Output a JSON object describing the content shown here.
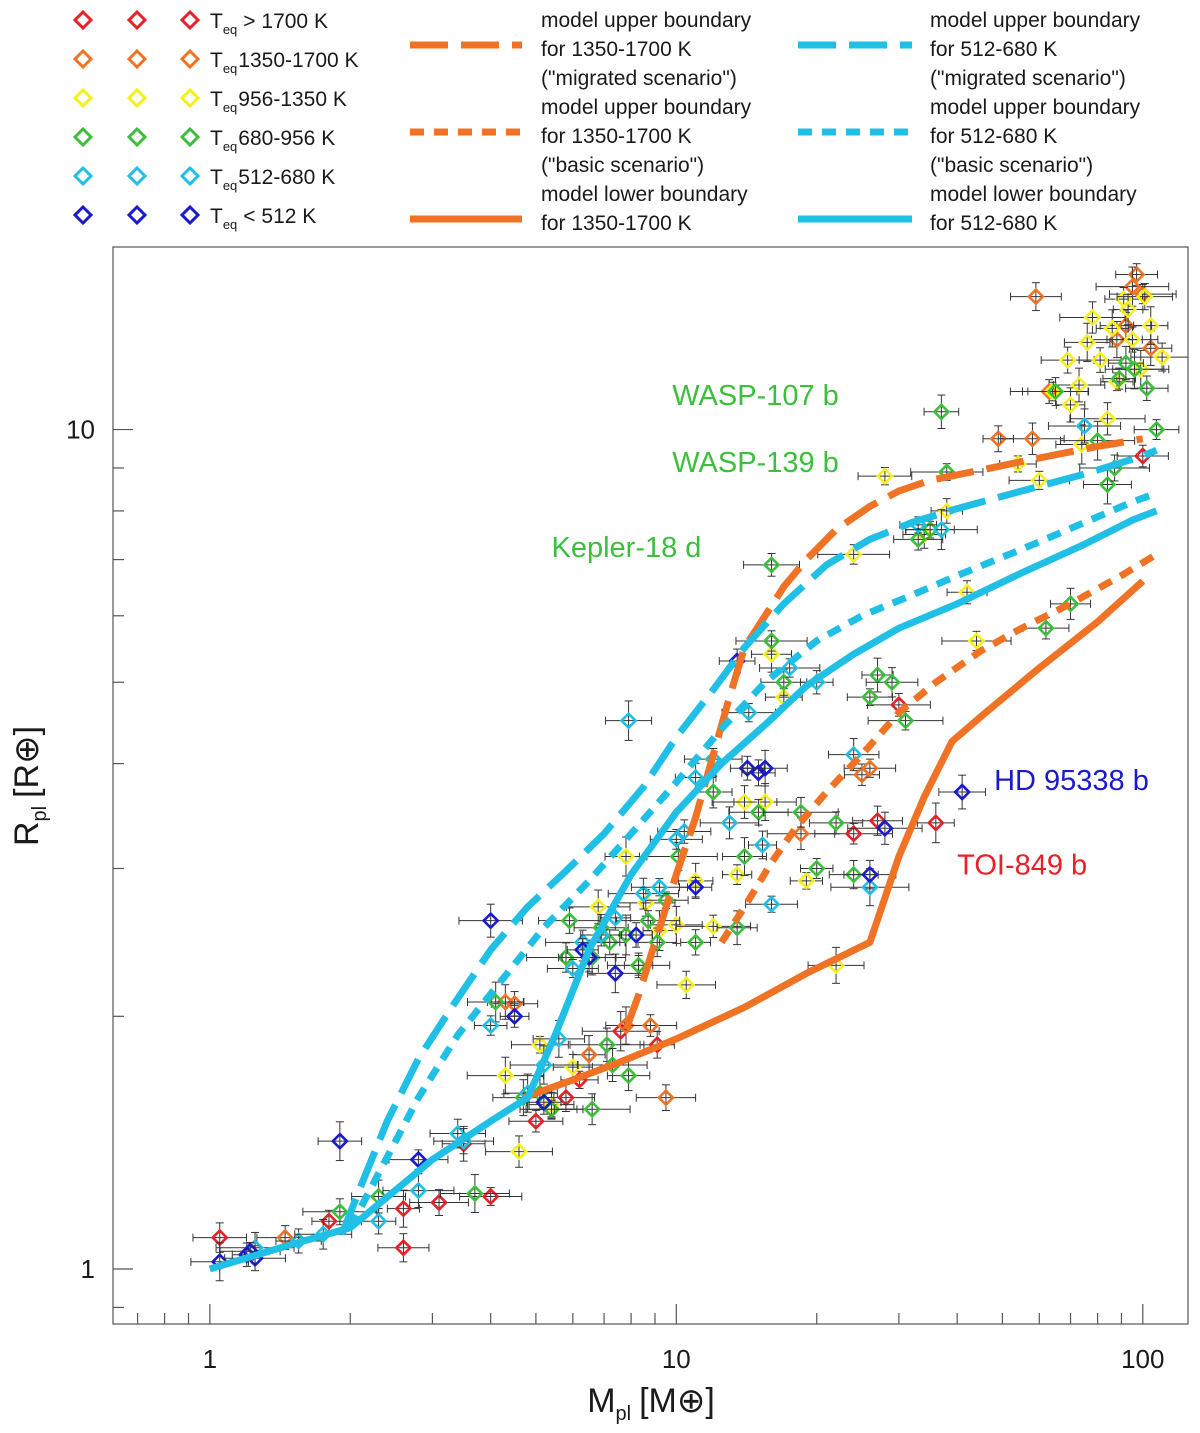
{
  "chart_data": {
    "type": "scatter",
    "title": "",
    "xlabel": {
      "main": "M",
      "sub": "pl",
      "unit": "[M⊕]"
    },
    "ylabel": {
      "main": "R",
      "sub": "pl",
      "unit": "[R⊕]"
    },
    "xscale": "log",
    "yscale": "log",
    "xlim": [
      0.62,
      125
    ],
    "ylim": [
      0.86,
      16.5
    ],
    "x_ticks": [
      {
        "value": 1,
        "label": "1"
      },
      {
        "value": 10,
        "label": "10"
      },
      {
        "value": 100,
        "label": "100"
      }
    ],
    "y_ticks": [
      {
        "value": 1,
        "label": "1"
      },
      {
        "value": 10,
        "label": "10"
      }
    ],
    "grid": false,
    "legend_placement": "top",
    "legend": {
      "temperature_classes": [
        {
          "prefix": "T",
          "sub": "eq",
          "rest": "> 1700 K",
          "color": "#e8202a"
        },
        {
          "prefix": "T",
          "sub": "eq",
          "rest": "1350-1700 K",
          "color": "#f07224"
        },
        {
          "prefix": "T",
          "sub": "eq",
          "rest": "956-1350 K",
          "color": "#f5f01c"
        },
        {
          "prefix": "T",
          "sub": "eq",
          "rest": "680-956 K",
          "color": "#3cbf3c"
        },
        {
          "prefix": "T",
          "sub": "eq",
          "rest": "512-680 K",
          "color": "#1fbfe6"
        },
        {
          "prefix": "T",
          "sub": "eq",
          "rest": "< 512 K",
          "color": "#1a1acc"
        }
      ],
      "model_lines": [
        {
          "line1": "model upper boundary",
          "line2": "for 1350-1700 K",
          "line3": "(\"migrated scenario\")",
          "color": "#f07224",
          "style": "long-dash"
        },
        {
          "line1": "model upper boundary",
          "line2": "for 1350-1700 K",
          "line3": "(\"basic scenario\")",
          "color": "#f07224",
          "style": "short-dash"
        },
        {
          "line1": "model lower boundary",
          "line2": "for 1350-1700 K",
          "line3": "",
          "color": "#f07224",
          "style": "solid"
        },
        {
          "line1": "model upper boundary",
          "line2": "for 512-680 K",
          "line3": "(\"migrated  scenario\")",
          "color": "#1fbfe6",
          "style": "long-dash"
        },
        {
          "line1": "model upper boundary",
          "line2": "for 512-680 K",
          "line3": "(\"basic scenario\")",
          "color": "#1fbfe6",
          "style": "short-dash"
        },
        {
          "line1": "model lower boundary",
          "line2": "for 512-680 K",
          "line3": "",
          "color": "#1fbfe6",
          "style": "solid"
        }
      ]
    },
    "annotations": [
      {
        "text": "WASP-107 b",
        "x": 9.8,
        "y": 10.7,
        "color": "#3cbf3c",
        "anchor": "start"
      },
      {
        "text": "WASP-139 b",
        "x": 9.8,
        "y": 8.9,
        "color": "#3cbf3c",
        "anchor": "start"
      },
      {
        "text": "Kepler-18 d",
        "x": 5.4,
        "y": 7.05,
        "color": "#3cbf3c",
        "anchor": "start"
      },
      {
        "text": "HD 95338 b",
        "x": 48,
        "y": 3.72,
        "color": "#1a1acc",
        "anchor": "start"
      },
      {
        "text": "TOI-849 b",
        "x": 40,
        "y": 2.95,
        "color": "#e8202a",
        "anchor": "start"
      }
    ],
    "series": [
      {
        "name": "model upper boundary 1350-1700 K (migrated scenario)",
        "color": "#f07224",
        "style": "long-dash",
        "x": [
          7.8,
          8.3,
          9.0,
          10.0,
          11.0,
          12.0,
          13.0,
          14.0,
          15.5,
          17.0,
          19.0,
          22.0,
          26.0,
          30.0,
          35.0,
          45.0,
          60.0,
          80.0,
          100.0
        ],
        "y": [
          1.93,
          2.12,
          2.45,
          2.95,
          3.45,
          4.1,
          4.8,
          5.5,
          6.0,
          6.5,
          7.0,
          7.6,
          8.1,
          8.45,
          8.7,
          8.95,
          9.25,
          9.55,
          9.75
        ]
      },
      {
        "name": "model upper boundary 1350-1700 K (basic scenario)",
        "color": "#f07224",
        "style": "short-dash",
        "x": [
          12.5,
          14.0,
          16.0,
          18.0,
          21.0,
          25.0,
          30.0,
          36.0,
          45.0,
          55.0,
          70.0,
          90.0,
          107.0
        ],
        "y": [
          2.45,
          2.7,
          3.05,
          3.35,
          3.7,
          4.1,
          4.6,
          5.0,
          5.45,
          5.8,
          6.2,
          6.7,
          7.1
        ]
      },
      {
        "name": "model lower boundary 1350-1700 K",
        "color": "#f07224",
        "style": "solid",
        "x": [
          4.7,
          6.0,
          7.5,
          10.0,
          14.0,
          19.0,
          26.0,
          30.0,
          34.0,
          39.0,
          46.0,
          60.0,
          80.0,
          100.0
        ],
        "y": [
          1.6,
          1.68,
          1.76,
          1.88,
          2.05,
          2.25,
          2.45,
          3.1,
          3.65,
          4.25,
          4.6,
          5.2,
          5.9,
          6.6
        ]
      },
      {
        "name": "model upper boundary 512-680 K (migrated scenario)",
        "color": "#1fbfe6",
        "style": "long-dash",
        "x": [
          1.92,
          2.1,
          2.4,
          2.8,
          3.3,
          4.0,
          4.8,
          5.8,
          7.0,
          8.5,
          10.0,
          12.0,
          14.0,
          17.0,
          21.0,
          26.0,
          32.0,
          40.0,
          55.0,
          75.0,
          100.0,
          107.0
        ],
        "y": [
          1.1,
          1.25,
          1.5,
          1.78,
          2.05,
          2.4,
          2.7,
          2.98,
          3.3,
          3.75,
          4.3,
          4.9,
          5.5,
          6.2,
          6.9,
          7.4,
          7.75,
          8.05,
          8.45,
          8.85,
          9.3,
          9.45
        ]
      },
      {
        "name": "model upper boundary 512-680 K (basic scenario)",
        "color": "#1fbfe6",
        "style": "short-dash",
        "x": [
          2.0,
          2.3,
          2.8,
          3.4,
          4.2,
          5.2,
          6.5,
          8.0,
          10.0,
          12.5,
          15.5,
          20.0,
          25.0,
          32.0,
          40.0,
          55.0,
          75.0,
          95.0,
          107.0
        ],
        "y": [
          1.12,
          1.3,
          1.6,
          1.9,
          2.2,
          2.55,
          2.9,
          3.3,
          3.8,
          4.4,
          5.0,
          5.6,
          6.0,
          6.35,
          6.7,
          7.2,
          7.75,
          8.2,
          8.4
        ]
      },
      {
        "name": "model lower boundary 512-680 K",
        "color": "#1fbfe6",
        "style": "solid",
        "x": [
          1.0,
          1.5,
          2.0,
          3.0,
          4.0,
          4.8,
          5.5,
          6.5,
          8.0,
          10.0,
          12.5,
          15.5,
          19.0,
          24.0,
          30.0,
          40.0,
          55.0,
          75.0,
          95.0,
          107.0
        ],
        "y": [
          1.0,
          1.07,
          1.12,
          1.35,
          1.5,
          1.6,
          1.9,
          2.4,
          2.95,
          3.5,
          4.0,
          4.45,
          4.95,
          5.4,
          5.8,
          6.2,
          6.75,
          7.3,
          7.8,
          8.0
        ]
      }
    ],
    "points": {
      "red": [
        [
          1.05,
          1.09
        ],
        [
          1.8,
          1.14
        ],
        [
          2.6,
          1.06
        ],
        [
          2.6,
          1.18
        ],
        [
          3.1,
          1.2
        ],
        [
          3.5,
          1.41
        ],
        [
          4.0,
          1.22
        ],
        [
          5.0,
          1.5
        ],
        [
          5.4,
          1.55
        ],
        [
          5.8,
          1.6
        ],
        [
          6.2,
          1.68
        ],
        [
          7.6,
          1.92
        ],
        [
          9.1,
          1.85
        ],
        [
          24.0,
          3.3
        ],
        [
          27.0,
          3.42
        ],
        [
          30.0,
          4.7
        ],
        [
          36.0,
          3.4
        ],
        [
          100.0,
          9.3
        ]
      ],
      "orange": [
        [
          1.45,
          1.09
        ],
        [
          4.3,
          2.08
        ],
        [
          4.5,
          2.07
        ],
        [
          6.5,
          1.8
        ],
        [
          7.8,
          1.95
        ],
        [
          8.8,
          1.95
        ],
        [
          9.5,
          1.6
        ],
        [
          18.5,
          3.3
        ],
        [
          25.0,
          3.88
        ],
        [
          26.0,
          3.95
        ],
        [
          49.0,
          9.75
        ],
        [
          58.0,
          9.75
        ],
        [
          63.0,
          11.1
        ],
        [
          59.0,
          14.4
        ],
        [
          88.0,
          12.8
        ],
        [
          92.0,
          13.3
        ],
        [
          97.0,
          15.3
        ],
        [
          100.0,
          14.5
        ],
        [
          104.0,
          12.5
        ],
        [
          95.0,
          14.8
        ]
      ],
      "yellow": [
        [
          4.3,
          1.7
        ],
        [
          4.6,
          1.38
        ],
        [
          5.1,
          1.85
        ],
        [
          5.4,
          1.57
        ],
        [
          6.0,
          1.74
        ],
        [
          6.8,
          2.7
        ],
        [
          7.8,
          3.1
        ],
        [
          8.3,
          2.3
        ],
        [
          8.6,
          2.73
        ],
        [
          9.2,
          2.53
        ],
        [
          10.0,
          2.57
        ],
        [
          10.5,
          2.18
        ],
        [
          11.0,
          2.9
        ],
        [
          12.0,
          2.56
        ],
        [
          13.5,
          2.95
        ],
        [
          14.0,
          3.6
        ],
        [
          15.5,
          3.6
        ],
        [
          16.0,
          5.4
        ],
        [
          17.0,
          4.8
        ],
        [
          19.0,
          2.9
        ],
        [
          22.0,
          2.3
        ],
        [
          24.0,
          7.1
        ],
        [
          28.0,
          8.8
        ],
        [
          34.0,
          7.5
        ],
        [
          38.0,
          8.0
        ],
        [
          42.0,
          6.4
        ],
        [
          44.0,
          5.6
        ],
        [
          54.0,
          9.1
        ],
        [
          60.0,
          8.7
        ],
        [
          64.0,
          11.1
        ],
        [
          69.0,
          12.1
        ],
        [
          70.0,
          10.7
        ],
        [
          73.0,
          11.3
        ],
        [
          76.0,
          12.7
        ],
        [
          78.0,
          13.6
        ],
        [
          81.0,
          12.1
        ],
        [
          86.0,
          13.2
        ],
        [
          88.0,
          11.4
        ],
        [
          91.0,
          14.3
        ],
        [
          93.0,
          13.9
        ],
        [
          95.0,
          12.8
        ],
        [
          99.0,
          11.8
        ],
        [
          101.0,
          14.4
        ],
        [
          104.0,
          13.3
        ],
        [
          110.0,
          12.2
        ],
        [
          84.0,
          10.3
        ],
        [
          74.0,
          9.6
        ]
      ],
      "green": [
        [
          1.9,
          1.17
        ],
        [
          2.3,
          1.22
        ],
        [
          3.7,
          1.23
        ],
        [
          4.1,
          2.08
        ],
        [
          4.7,
          1.6
        ],
        [
          5.4,
          1.55
        ],
        [
          5.8,
          2.35
        ],
        [
          5.9,
          2.6
        ],
        [
          6.6,
          2.35
        ],
        [
          6.9,
          2.55
        ],
        [
          7.1,
          1.85
        ],
        [
          7.2,
          2.45
        ],
        [
          7.8,
          2.5
        ],
        [
          8.3,
          2.3
        ],
        [
          8.7,
          2.6
        ],
        [
          9.1,
          2.45
        ],
        [
          9.5,
          2.75
        ],
        [
          10.1,
          3.1
        ],
        [
          11.0,
          2.45
        ],
        [
          12.0,
          3.7
        ],
        [
          13.5,
          2.55
        ],
        [
          14.0,
          3.1
        ],
        [
          15.0,
          3.5
        ],
        [
          16.0,
          5.6
        ],
        [
          17.0,
          5.0
        ],
        [
          18.5,
          3.5
        ],
        [
          20.0,
          3.0
        ],
        [
          22.0,
          3.4
        ],
        [
          24.0,
          2.95
        ],
        [
          26.0,
          4.8
        ],
        [
          27.0,
          5.1
        ],
        [
          29.0,
          5.0
        ],
        [
          31.0,
          4.5
        ],
        [
          33.0,
          7.4
        ],
        [
          35.0,
          7.6
        ],
        [
          37.0,
          10.5
        ],
        [
          38.0,
          8.9
        ],
        [
          16.0,
          6.9
        ],
        [
          62.0,
          5.8
        ],
        [
          65.0,
          11.1
        ],
        [
          70.0,
          6.2
        ],
        [
          80.0,
          9.7
        ],
        [
          84.0,
          8.6
        ],
        [
          87.0,
          9.0
        ],
        [
          89.0,
          11.5
        ],
        [
          92.0,
          12.0
        ],
        [
          96.0,
          11.8
        ],
        [
          102.0,
          11.2
        ],
        [
          107.0,
          10.0
        ],
        [
          6.6,
          1.55
        ],
        [
          7.3,
          1.75
        ],
        [
          7.9,
          1.7
        ],
        [
          5.1,
          1.62
        ]
      ],
      "cyan": [
        [
          1.25,
          1.06
        ],
        [
          1.55,
          1.08
        ],
        [
          1.75,
          1.1
        ],
        [
          2.3,
          1.14
        ],
        [
          2.8,
          1.24
        ],
        [
          3.4,
          1.45
        ],
        [
          3.5,
          1.42
        ],
        [
          4.0,
          1.95
        ],
        [
          4.8,
          1.62
        ],
        [
          5.2,
          1.75
        ],
        [
          5.6,
          1.88
        ],
        [
          6.0,
          2.28
        ],
        [
          6.3,
          2.45
        ],
        [
          6.9,
          2.5
        ],
        [
          7.4,
          2.62
        ],
        [
          7.9,
          4.5
        ],
        [
          8.5,
          2.8
        ],
        [
          9.2,
          2.85
        ],
        [
          10.0,
          3.25
        ],
        [
          10.4,
          3.32
        ],
        [
          11.0,
          3.85
        ],
        [
          12.0,
          4.05
        ],
        [
          13.0,
          3.4
        ],
        [
          14.3,
          4.6
        ],
        [
          15.3,
          3.2
        ],
        [
          16.0,
          2.72
        ],
        [
          17.5,
          5.2
        ],
        [
          20.0,
          5.0
        ],
        [
          24.0,
          4.1
        ],
        [
          26.0,
          2.85
        ],
        [
          33.0,
          7.7
        ],
        [
          37.0,
          7.6
        ],
        [
          75.0,
          10.1
        ]
      ],
      "blue": [
        [
          1.05,
          1.02
        ],
        [
          1.2,
          1.04
        ],
        [
          1.22,
          1.05
        ],
        [
          1.25,
          1.03
        ],
        [
          1.9,
          1.42
        ],
        [
          2.8,
          1.35
        ],
        [
          4.0,
          2.6
        ],
        [
          4.5,
          2.0
        ],
        [
          5.2,
          1.58
        ],
        [
          6.3,
          2.4
        ],
        [
          6.5,
          2.35
        ],
        [
          7.4,
          2.25
        ],
        [
          8.2,
          2.5
        ],
        [
          11.0,
          2.85
        ],
        [
          13.5,
          5.3
        ],
        [
          14.2,
          3.95
        ],
        [
          15.0,
          3.9
        ],
        [
          15.5,
          3.95
        ],
        [
          26.0,
          2.95
        ],
        [
          28.0,
          3.35
        ],
        [
          41.0,
          3.7
        ]
      ]
    }
  }
}
